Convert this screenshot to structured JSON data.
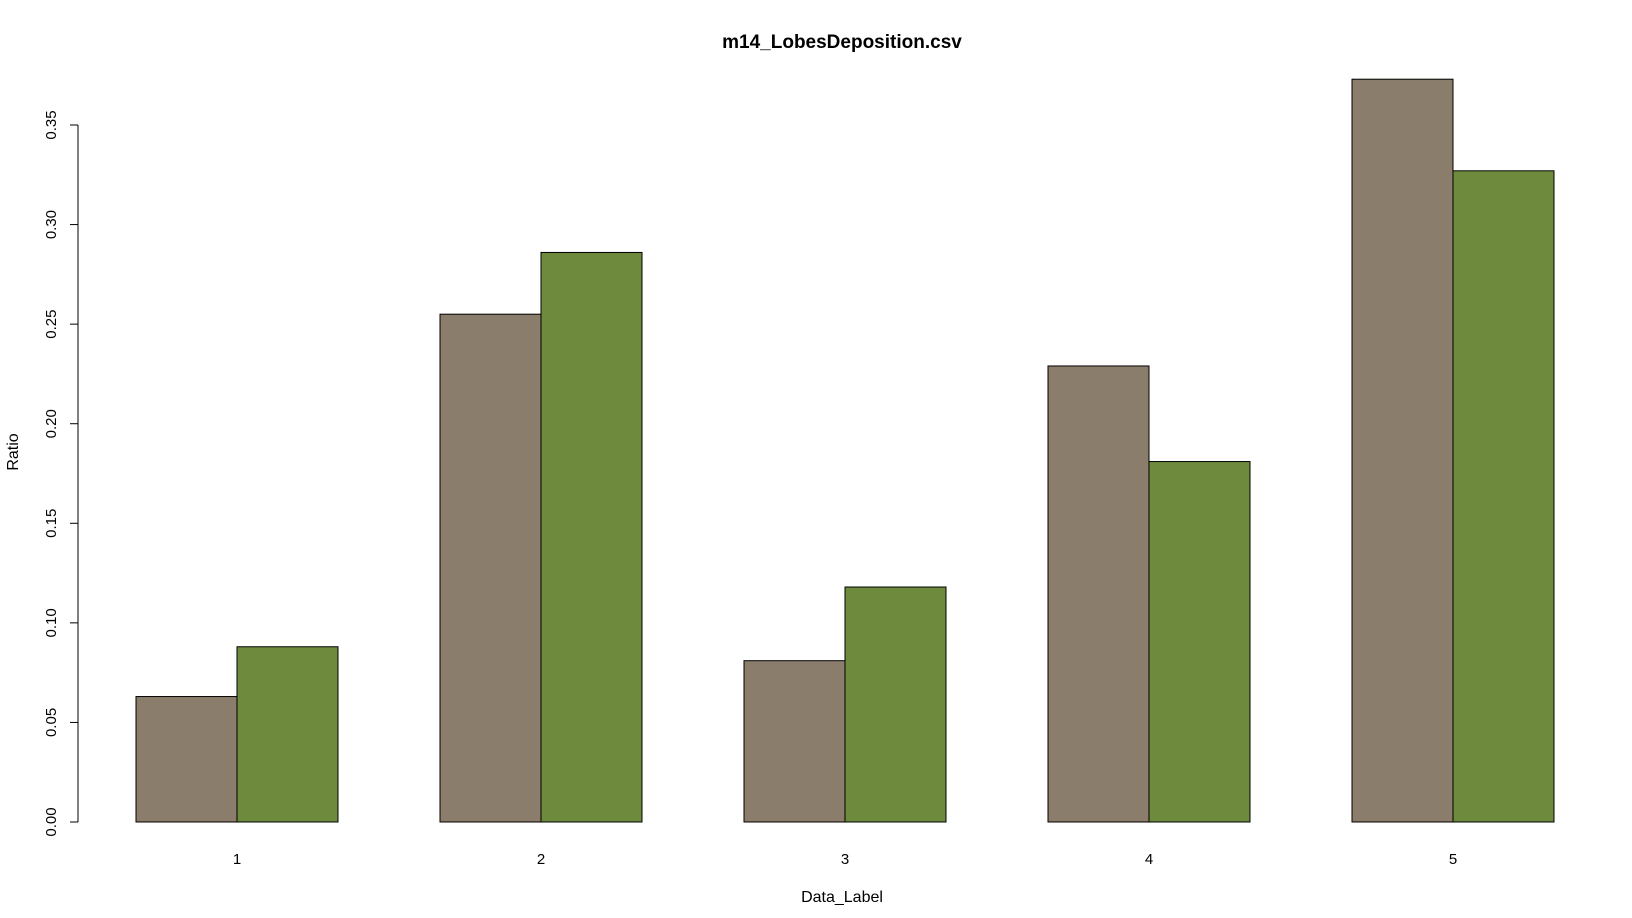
{
  "chart_data": {
    "type": "bar",
    "title": "m14_LobesDeposition.csv",
    "xlabel": "Data_Label",
    "ylabel": "Ratio",
    "categories": [
      "1",
      "2",
      "3",
      "4",
      "5"
    ],
    "series": [
      {
        "values": [
          0.063,
          0.255,
          0.081,
          0.229,
          0.373
        ]
      },
      {
        "values": [
          0.088,
          0.286,
          0.118,
          0.181,
          0.327
        ]
      }
    ],
    "colors": [
      "#8b7d6b",
      "#6e8b3d"
    ],
    "ylim": [
      0,
      0.35
    ],
    "yticks": [
      "0.00",
      "0.05",
      "0.10",
      "0.15",
      "0.20",
      "0.25",
      "0.30",
      "0.35"
    ],
    "grid": false,
    "legend": "none"
  }
}
